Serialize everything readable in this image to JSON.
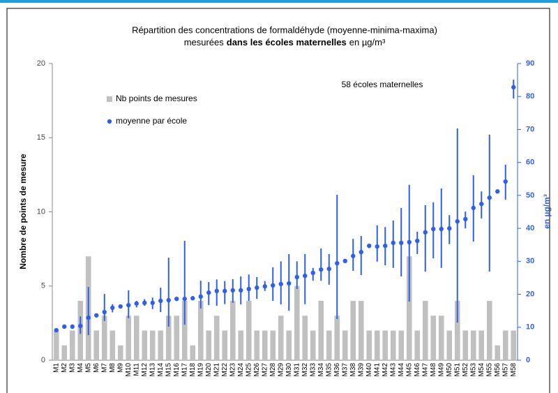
{
  "chart_data": {
    "type": "bar-errorbar",
    "title": "Répartition des concentrations de formaldéhyde (moyenne-minima-maxima)",
    "title_line2": [
      "mesurées",
      "dans les écoles maternelles",
      "en µg/m³"
    ],
    "annotation": "58 écoles maternelles",
    "y_label": "Nombre de points de mesure",
    "y2_label": "en µg/m³",
    "categories": [
      "M1",
      "M2",
      "M3",
      "M4",
      "M5",
      "M6",
      "M7",
      "M8",
      "M9",
      "M10",
      "M11",
      "M12",
      "M13",
      "M14",
      "M15",
      "M16",
      "M17",
      "M18",
      "M19",
      "M20",
      "M21",
      "M22",
      "M23",
      "M24",
      "M25",
      "M26",
      "M27",
      "M28",
      "M29",
      "M30",
      "M31",
      "M32",
      "M33",
      "M34",
      "M35",
      "M36",
      "M37",
      "M38",
      "M39",
      "M40",
      "M41",
      "M42",
      "M43",
      "M44",
      "M45",
      "M46",
      "M47",
      "M48",
      "M49",
      "M50",
      "M51",
      "M52",
      "M53",
      "M54",
      "M55",
      "M56",
      "M57",
      "M58"
    ],
    "ylim": [
      0,
      20
    ],
    "yticks": [
      0,
      5,
      10,
      15,
      20
    ],
    "y2lim": [
      0,
      90
    ],
    "y2ticks": [
      0,
      10,
      20,
      30,
      40,
      50,
      60,
      70,
      80,
      90
    ],
    "series": [
      {
        "name": "Nb points de mesures",
        "color": "#c0c0c0",
        "axis": "y",
        "values": [
          2,
          1,
          2,
          4,
          7,
          2,
          3,
          2,
          1,
          3,
          3,
          2,
          2,
          2,
          3,
          3,
          4,
          1,
          4,
          2,
          3,
          2,
          4,
          2,
          4,
          2,
          2,
          2,
          3,
          2,
          5,
          3,
          2,
          4,
          2,
          3,
          2,
          4,
          4,
          2,
          2,
          2,
          2,
          2,
          7,
          2,
          4,
          3,
          3,
          2,
          4,
          2,
          2,
          2,
          4,
          1,
          2,
          2
        ]
      },
      {
        "name": "moyenne par école",
        "color": "#2f5fe8",
        "axis": "y2",
        "values": [
          9.1,
          10.2,
          10.2,
          10.4,
          12.9,
          13.6,
          14.6,
          15.9,
          16.3,
          16.7,
          17.2,
          17.4,
          17.4,
          18,
          18.2,
          18.6,
          18.6,
          18.8,
          19.3,
          20.5,
          21,
          21,
          21.2,
          21.2,
          21.6,
          22,
          22.4,
          22.7,
          23.1,
          23.3,
          25.2,
          25.6,
          26.5,
          27.5,
          27.7,
          29.4,
          30.1,
          31.6,
          32.8,
          34.7,
          34.5,
          34.7,
          35.6,
          35.6,
          35.8,
          36.2,
          38.8,
          39.8,
          39.8,
          40,
          42.1,
          42.8,
          46.2,
          47.4,
          49.3,
          51.2,
          54.2,
          82.8
        ],
        "min": [
          8.5,
          10,
          9.5,
          8,
          7.6,
          13,
          11.9,
          14.5,
          16,
          12.7,
          16,
          16.5,
          15.5,
          14.6,
          10.2,
          18,
          10.8,
          18.5,
          15.7,
          16.7,
          16.5,
          17,
          17.4,
          16.9,
          18,
          18.6,
          21,
          18,
          16.9,
          15,
          21.6,
          17,
          24.1,
          24.1,
          22.9,
          12.5,
          29.5,
          27.1,
          25.8,
          34,
          29.9,
          28.8,
          28,
          25.4,
          17.8,
          32.2,
          26.9,
          30.9,
          28,
          35.2,
          11.4,
          40,
          36,
          43,
          26.9,
          51,
          48.7,
          79.4
        ],
        "max": [
          9.5,
          10.5,
          10.8,
          13.3,
          22.2,
          14,
          20.1,
          17,
          16.7,
          21.2,
          18,
          18.5,
          19,
          22,
          31.1,
          19,
          36.2,
          19.2,
          24.1,
          23.7,
          24.5,
          24,
          24.6,
          25.4,
          26,
          25.2,
          24,
          28.2,
          30,
          32.2,
          30,
          32.2,
          28,
          33.9,
          32.2,
          50.2,
          30.5,
          36.8,
          37.7,
          35.2,
          40.9,
          40.4,
          42.4,
          46.2,
          53.2,
          39,
          47,
          47.9,
          52.1,
          44,
          70.3,
          45.1,
          56.1,
          51.2,
          68.4,
          51.5,
          59.3,
          85.1
        ]
      }
    ]
  }
}
